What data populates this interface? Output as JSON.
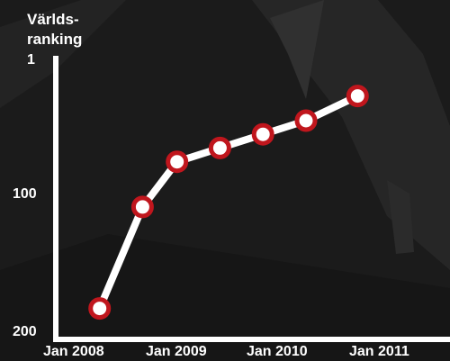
{
  "chart_data": {
    "type": "line",
    "title": "",
    "ylabel": [
      "Världs-",
      "ranking"
    ],
    "xlabel": "",
    "x_ticks": [
      "Jan 2008",
      "Jan 2009",
      "Jan 2010",
      "Jan 2011"
    ],
    "y_ticks": [
      "1",
      "100",
      "200"
    ],
    "y_tick_values": [
      1,
      100,
      200
    ],
    "ylim": [
      200,
      1
    ],
    "y_inverted": true,
    "grid": false,
    "series": [
      {
        "x": [
          "2008-04",
          "2008-09",
          "2009-01",
          "2009-06",
          "2009-11",
          "2010-04",
          "2010-10"
        ],
        "values": [
          182,
          108,
          75,
          65,
          55,
          45,
          27
        ]
      }
    ],
    "colors": {
      "background": "#1b1b1b",
      "axis": "#ffffff",
      "line": "#ffffff",
      "marker_fill": "#ffffff",
      "marker_stroke": "#c0161d",
      "text": "#ffffff"
    }
  }
}
